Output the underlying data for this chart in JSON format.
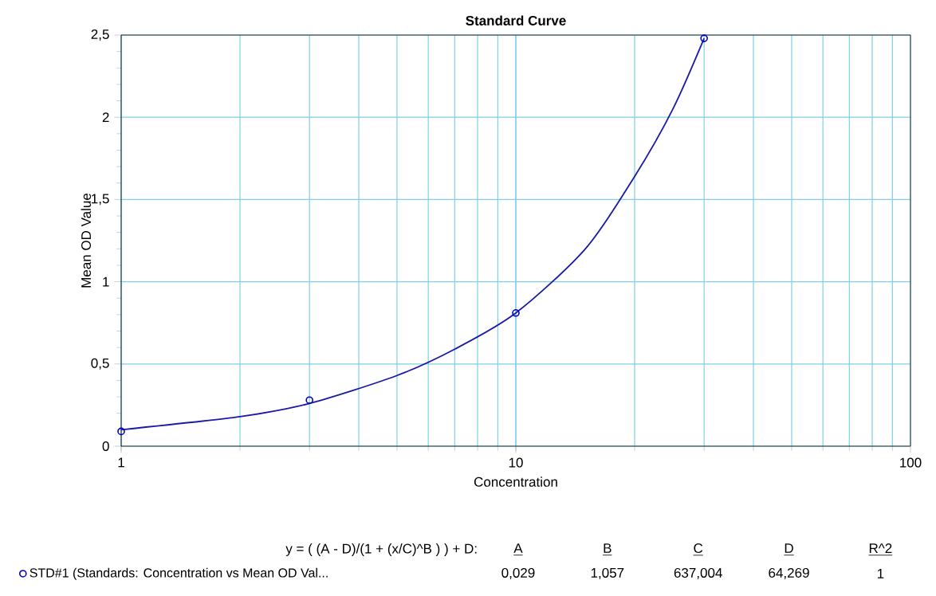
{
  "chart_data": {
    "type": "scatter",
    "title": "Standard Curve",
    "xlabel": "Concentration",
    "ylabel": "Mean OD Value",
    "log": "x",
    "xlim": [
      1,
      100
    ],
    "xticks": [
      1,
      10,
      100
    ],
    "ylim": [
      0,
      2.5
    ],
    "yticks": [
      0,
      {
        "value": 0.5,
        "label": "0,5"
      },
      1,
      {
        "value": 1.5,
        "label": "1,5"
      },
      2,
      {
        "value": 2.5,
        "label": "2,5"
      }
    ],
    "grid": true,
    "legend": "bottom",
    "series": [
      {
        "name": "STD#1 (Standards: Concentration vs Mean OD Val...",
        "marker": "circle",
        "color": "#0000c0",
        "x": [
          1,
          3,
          10,
          30
        ],
        "values": [
          0.09,
          0.28,
          0.81,
          2.48
        ]
      },
      {
        "type": "line",
        "marker": "none",
        "line_style": "solid",
        "color": "#1a1aa8",
        "x": [
          1,
          2,
          3,
          5,
          7,
          10,
          15,
          20,
          25,
          30
        ],
        "values": [
          0.1,
          0.18,
          0.26,
          0.43,
          0.59,
          0.81,
          1.2,
          1.64,
          2.05,
          2.48
        ]
      }
    ],
    "annotations": [
      "y = ( (A - D)/(1 + (x/C)^B ) ) + D:",
      "A",
      "B",
      "C",
      "D",
      "R^2",
      "0,029",
      "1,057",
      "637,004",
      "64,269",
      "1"
    ]
  }
}
